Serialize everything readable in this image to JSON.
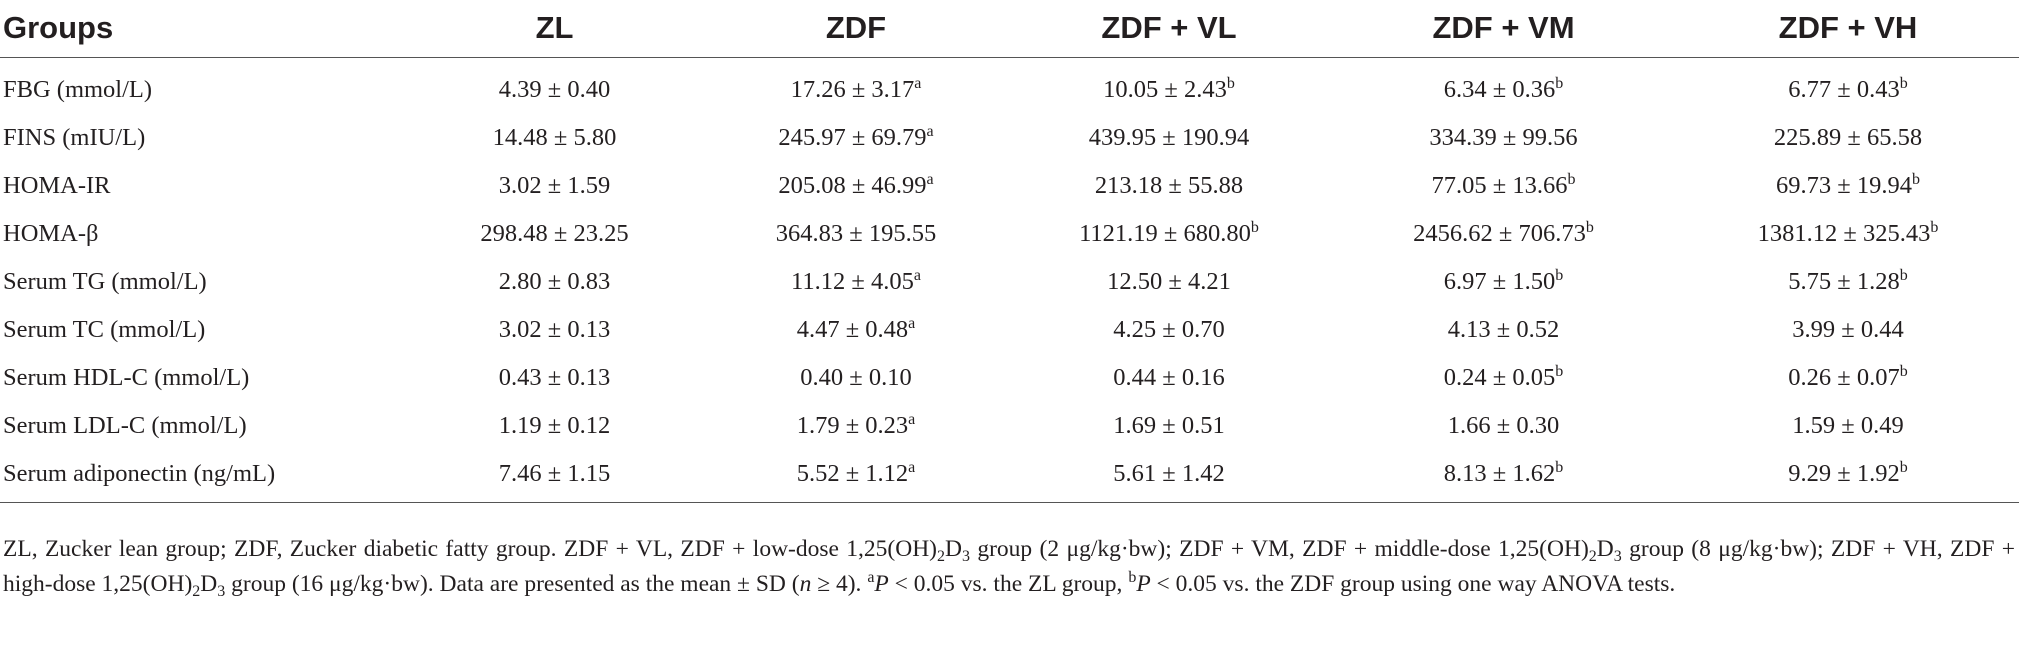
{
  "table": {
    "headers": [
      "Groups",
      "ZL",
      "ZDF",
      "ZDF + VL",
      "ZDF + VM",
      "ZDF + VH"
    ],
    "rows": [
      {
        "label": "FBG (mmol/L)",
        "cells": [
          {
            "v": "4.39 ± 0.40",
            "s": ""
          },
          {
            "v": "17.26 ± 3.17",
            "s": "a"
          },
          {
            "v": "10.05 ± 2.43",
            "s": "b"
          },
          {
            "v": "6.34 ± 0.36",
            "s": "b"
          },
          {
            "v": "6.77 ± 0.43",
            "s": "b"
          }
        ]
      },
      {
        "label": "FINS (mIU/L)",
        "cells": [
          {
            "v": "14.48 ± 5.80",
            "s": ""
          },
          {
            "v": "245.97 ± 69.79",
            "s": "a"
          },
          {
            "v": "439.95 ± 190.94",
            "s": ""
          },
          {
            "v": "334.39 ± 99.56",
            "s": ""
          },
          {
            "v": "225.89 ± 65.58",
            "s": ""
          }
        ]
      },
      {
        "label": "HOMA-IR",
        "cells": [
          {
            "v": "3.02 ± 1.59",
            "s": ""
          },
          {
            "v": "205.08 ± 46.99",
            "s": "a"
          },
          {
            "v": "213.18 ± 55.88",
            "s": ""
          },
          {
            "v": "77.05 ± 13.66",
            "s": "b"
          },
          {
            "v": "69.73 ± 19.94",
            "s": "b"
          }
        ]
      },
      {
        "label": "HOMA-β",
        "cells": [
          {
            "v": "298.48 ± 23.25",
            "s": ""
          },
          {
            "v": "364.83 ± 195.55",
            "s": ""
          },
          {
            "v": "1121.19 ± 680.80",
            "s": "b"
          },
          {
            "v": "2456.62 ± 706.73",
            "s": "b"
          },
          {
            "v": "1381.12 ± 325.43",
            "s": "b"
          }
        ]
      },
      {
        "label": "Serum TG (mmol/L)",
        "cells": [
          {
            "v": "2.80 ± 0.83",
            "s": ""
          },
          {
            "v": "11.12 ± 4.05",
            "s": "a"
          },
          {
            "v": "12.50 ± 4.21",
            "s": ""
          },
          {
            "v": "6.97 ± 1.50",
            "s": "b"
          },
          {
            "v": "5.75 ± 1.28",
            "s": "b"
          }
        ]
      },
      {
        "label": "Serum TC (mmol/L)",
        "cells": [
          {
            "v": "3.02 ± 0.13",
            "s": ""
          },
          {
            "v": "4.47 ± 0.48",
            "s": "a"
          },
          {
            "v": "4.25 ± 0.70",
            "s": ""
          },
          {
            "v": "4.13 ± 0.52",
            "s": ""
          },
          {
            "v": "3.99 ± 0.44",
            "s": ""
          }
        ]
      },
      {
        "label": "Serum HDL-C (mmol/L)",
        "cells": [
          {
            "v": "0.43 ± 0.13",
            "s": ""
          },
          {
            "v": "0.40 ± 0.10",
            "s": ""
          },
          {
            "v": "0.44 ± 0.16",
            "s": ""
          },
          {
            "v": "0.24 ± 0.05",
            "s": "b"
          },
          {
            "v": "0.26 ± 0.07",
            "s": "b"
          }
        ]
      },
      {
        "label": "Serum LDL-C (mmol/L)",
        "cells": [
          {
            "v": "1.19 ± 0.12",
            "s": ""
          },
          {
            "v": "1.79 ± 0.23",
            "s": "a"
          },
          {
            "v": "1.69 ± 0.51",
            "s": ""
          },
          {
            "v": "1.66 ± 0.30",
            "s": ""
          },
          {
            "v": "1.59 ± 0.49",
            "s": ""
          }
        ]
      },
      {
        "label": "Serum adiponectin (ng/mL)",
        "cells": [
          {
            "v": "7.46 ± 1.15",
            "s": ""
          },
          {
            "v": "5.52 ± 1.12",
            "s": "a"
          },
          {
            "v": "5.61 ± 1.42",
            "s": ""
          },
          {
            "v": "8.13 ± 1.62",
            "s": "b"
          },
          {
            "v": "9.29 ± 1.92",
            "s": "b"
          }
        ]
      }
    ]
  },
  "footnote": {
    "p1": "ZL, Zucker lean group; ZDF, Zucker diabetic fatty group. ZDF + VL, ZDF + low-dose 1,25(OH)",
    "sub_2": "2",
    "d": "D",
    "sub_3": "3",
    "p2": " group (2 μg/kg·bw); ZDF + VM, ZDF + middle-dose 1,25(OH)",
    "p3": " group (8 μg/kg·bw); ZDF + VH, ZDF + high-dose 1,25(OH)",
    "p4": " group (16 μg/kg·bw). Data are presented as the mean ± SD (",
    "n": "n",
    "p5": " ≥ 4). ",
    "sup_a": "a",
    "P": "P",
    "p6": " < 0.05 vs. the ZL group, ",
    "sup_b": "b",
    "p7": " < 0.05 vs. the ZDF group using one way ANOVA tests."
  }
}
